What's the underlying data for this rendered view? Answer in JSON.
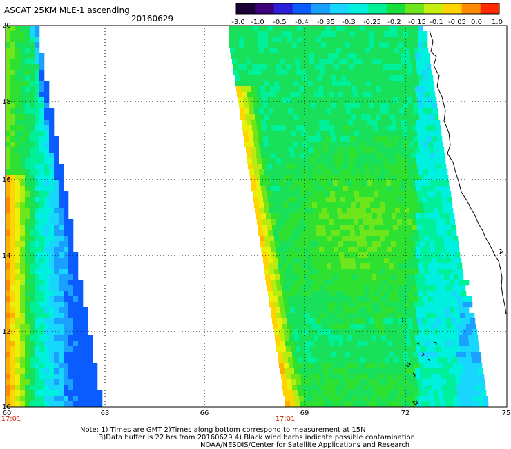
{
  "header": {
    "title": "ASCAT 25KM MLE-1 ascending",
    "date": "20160629"
  },
  "colorbar": {
    "labels": [
      "-3.0",
      "-1.0",
      "-0.5",
      "-0.4",
      "-0.35",
      "-0.3",
      "-0.25",
      "-0.2",
      "-0.15",
      "-0.1",
      "-0.05",
      "0.0",
      "1.0"
    ],
    "colors": [
      "#1a0033",
      "#3d007a",
      "#2b20d8",
      "#0a5cff",
      "#1aa0ff",
      "#19d6ff",
      "#00f0e0",
      "#00f09a",
      "#18e03a",
      "#6fe61c",
      "#c9ef10",
      "#ffd400",
      "#ff8a00",
      "#ff2a00"
    ]
  },
  "axes": {
    "x_ticks": [
      "60",
      "63",
      "66",
      "69",
      "72",
      "75"
    ],
    "y_ticks": [
      "20",
      "18",
      "16",
      "14",
      "12",
      "10"
    ],
    "time_labels": [
      "17:01",
      "17:01"
    ]
  },
  "notes": {
    "line1": "Note: 1) Times are GMT 2)Times along bottom correspond to measurement at 15N",
    "line2": "3)Data buffer is 22 hrs from 20160629 4) Black wind barbs indicate possible contamination",
    "line3": "NOAA/NESDIS/Center for Satellite Applications and Research"
  }
}
